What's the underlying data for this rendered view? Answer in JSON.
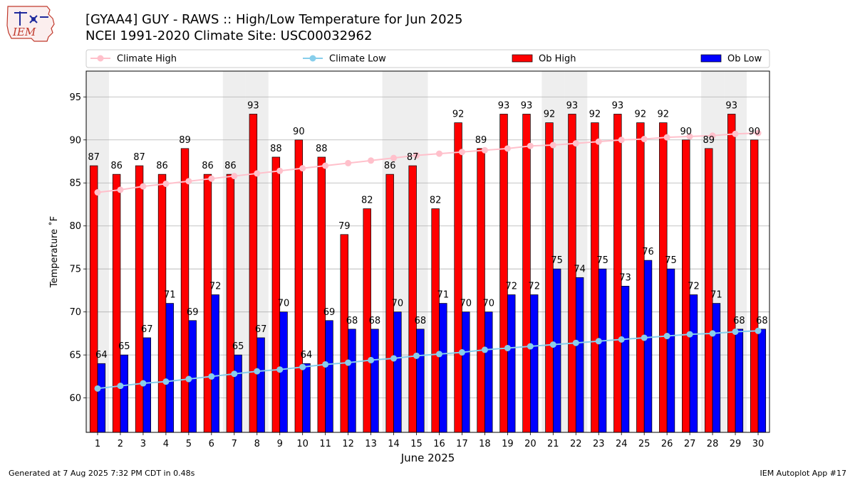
{
  "logo_text": "IEM",
  "title": "[GYAA4] GUY - RAWS :: High/Low Temperature for Jun 2025",
  "subtitle": "NCEI 1991-2020 Climate Site: USC00032962",
  "footer_left": "Generated at 7 Aug 2025 7:32 PM CDT in 0.48s",
  "footer_right": "IEM Autoplot App #17",
  "chart_data": {
    "type": "bar",
    "xlabel": "June 2025",
    "ylabel": "Temperature ˚F",
    "ylim": [
      56,
      98
    ],
    "yticks": [
      60,
      65,
      70,
      75,
      80,
      85,
      90,
      95
    ],
    "grid": true,
    "legend_position": "top",
    "categories": [
      "1",
      "2",
      "3",
      "4",
      "5",
      "6",
      "7",
      "8",
      "9",
      "10",
      "11",
      "12",
      "13",
      "14",
      "15",
      "16",
      "17",
      "18",
      "19",
      "20",
      "21",
      "22",
      "23",
      "24",
      "25",
      "26",
      "27",
      "28",
      "29",
      "30"
    ],
    "weekend_shading_days": [
      1,
      7,
      8,
      14,
      15,
      21,
      22,
      28,
      29
    ],
    "series": [
      {
        "name": "Climate High",
        "kind": "line",
        "color": "#ffc0cb",
        "values": [
          83.9,
          84.2,
          84.6,
          84.9,
          85.2,
          85.5,
          85.8,
          86.1,
          86.4,
          86.7,
          87.0,
          87.3,
          87.6,
          87.9,
          88.2,
          88.4,
          88.6,
          88.8,
          89.0,
          89.3,
          89.4,
          89.6,
          89.8,
          90.0,
          90.1,
          90.3,
          90.4,
          90.5,
          90.7,
          90.8
        ]
      },
      {
        "name": "Climate Low",
        "kind": "line",
        "color": "#87ceeb",
        "values": [
          61.1,
          61.4,
          61.7,
          61.9,
          62.2,
          62.5,
          62.8,
          63.1,
          63.3,
          63.6,
          63.9,
          64.1,
          64.4,
          64.6,
          64.9,
          65.1,
          65.3,
          65.6,
          65.8,
          66.0,
          66.2,
          66.4,
          66.6,
          66.8,
          67.0,
          67.2,
          67.4,
          67.5,
          67.7,
          67.8
        ]
      },
      {
        "name": "Ob High",
        "kind": "bar",
        "color": "#ff0000",
        "values": [
          87,
          86,
          87,
          86,
          89,
          86,
          86,
          93,
          88,
          90,
          88,
          79,
          82,
          86,
          87,
          82,
          92,
          89,
          93,
          93,
          92,
          93,
          92,
          93,
          92,
          92,
          90,
          89,
          93,
          90
        ]
      },
      {
        "name": "Ob Low",
        "kind": "bar",
        "color": "#0000ff",
        "values": [
          64,
          65,
          67,
          71,
          69,
          72,
          65,
          67,
          70,
          64,
          69,
          68,
          68,
          70,
          68,
          71,
          70,
          70,
          72,
          72,
          75,
          74,
          75,
          73,
          76,
          75,
          72,
          71,
          68,
          68
        ]
      }
    ]
  }
}
